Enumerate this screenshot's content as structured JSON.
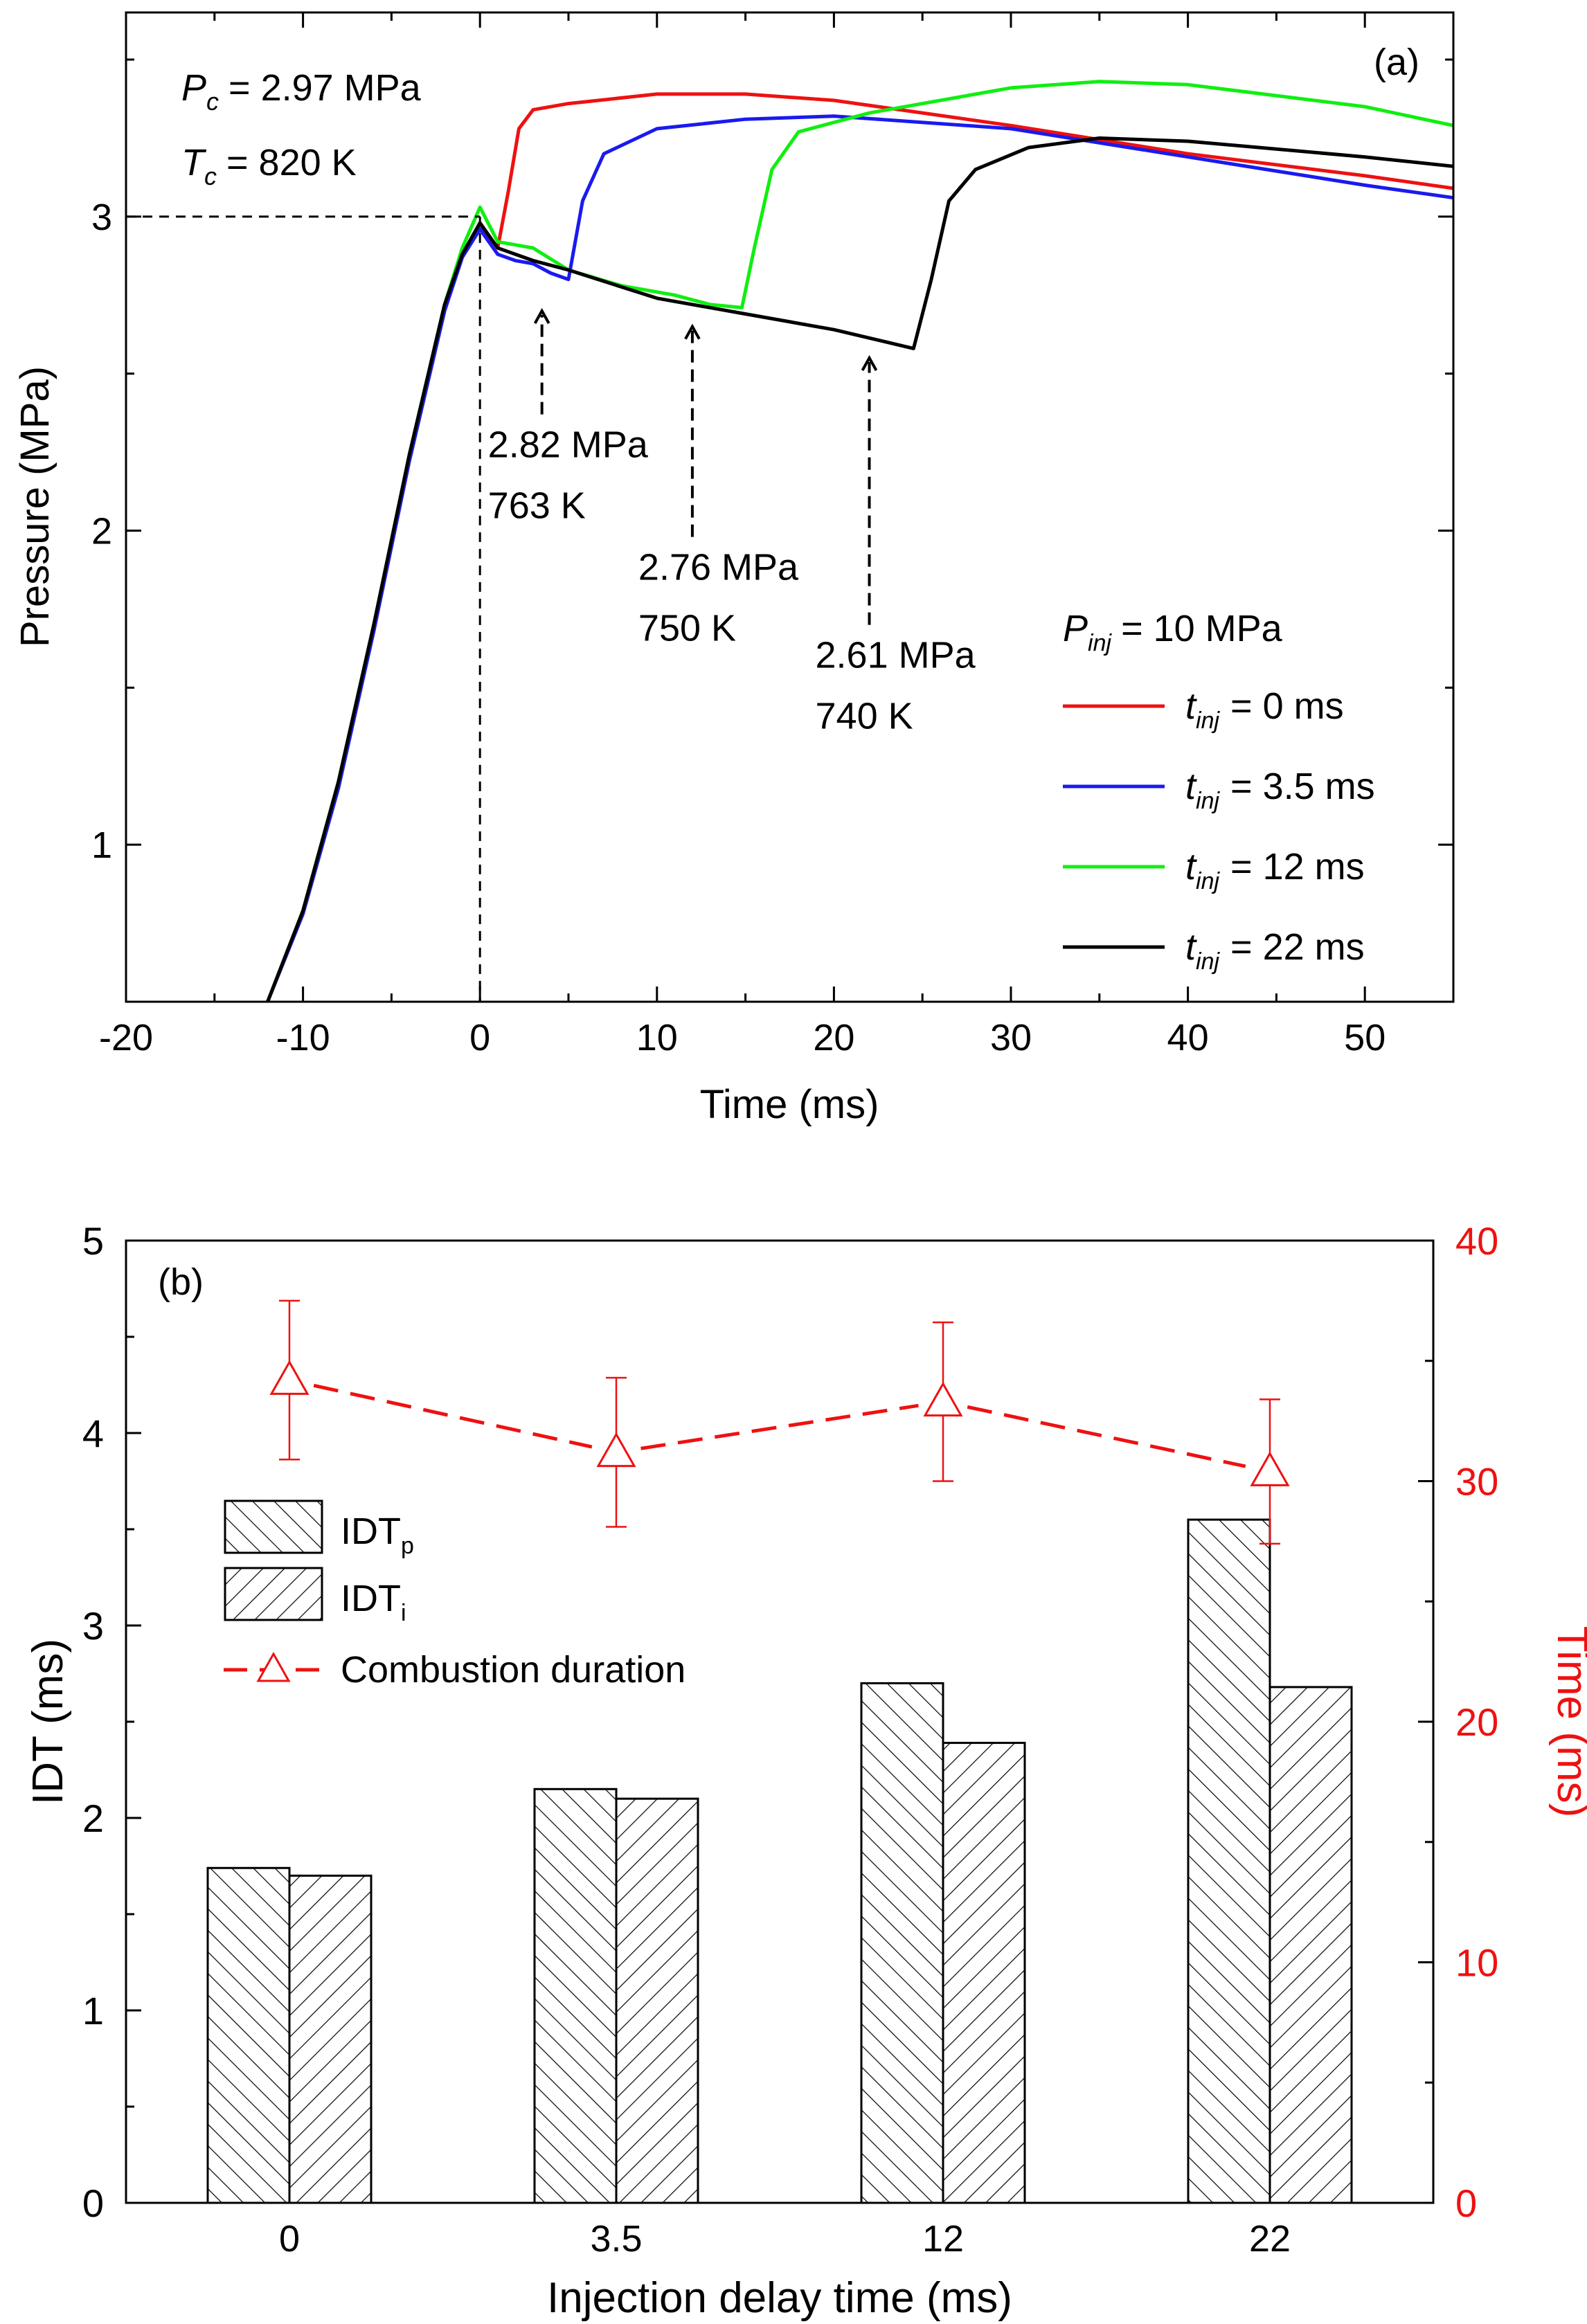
{
  "chart_data": [
    {
      "type": "line",
      "panel_label": "(a)",
      "xlabel": "Time (ms)",
      "ylabel": "Pressure (MPa)",
      "xlim": [
        -20,
        55
      ],
      "ylim": [
        0.5,
        3.65
      ],
      "xticks": [
        -20,
        -10,
        0,
        10,
        20,
        30,
        40,
        50
      ],
      "yticks": [
        1,
        2,
        3
      ],
      "grid": false,
      "conditions": {
        "pc_sym": "P",
        "pc_sub": "c",
        "pc_val": "= 2.97 MPa",
        "tc_sym": "T",
        "tc_sub": "c",
        "tc_val": "= 820 K"
      },
      "reference_line": {
        "x": 0,
        "y": 3
      },
      "legend": {
        "title_sym": "P",
        "title_sub": "inj",
        "title_val": "=  10 MPa",
        "placement": "right"
      },
      "series": [
        {
          "label_sym": "t",
          "label_sub": "inj",
          "label_val": "= 0 ms",
          "color": "#ee1111",
          "points": [
            [
              -12,
              0.5
            ],
            [
              -10,
              0.78
            ],
            [
              -8,
              1.18
            ],
            [
              -6,
              1.68
            ],
            [
              -4,
              2.22
            ],
            [
              -2,
              2.7
            ],
            [
              -1,
              2.87
            ],
            [
              0,
              2.97
            ],
            [
              0.6,
              2.93
            ],
            [
              1,
              2.9
            ],
            [
              1.6,
              3.08
            ],
            [
              2.2,
              3.28
            ],
            [
              3,
              3.34
            ],
            [
              5,
              3.36
            ],
            [
              10,
              3.39
            ],
            [
              15,
              3.39
            ],
            [
              20,
              3.37
            ],
            [
              30,
              3.29
            ],
            [
              40,
              3.2
            ],
            [
              50,
              3.13
            ],
            [
              55,
              3.09
            ]
          ]
        },
        {
          "label_sym": "t",
          "label_sub": "inj",
          "label_val": "= 3.5 ms",
          "color": "#1a1aee",
          "points": [
            [
              -12,
              0.5
            ],
            [
              -10,
              0.78
            ],
            [
              -8,
              1.18
            ],
            [
              -6,
              1.68
            ],
            [
              -4,
              2.22
            ],
            [
              -2,
              2.7
            ],
            [
              -1,
              2.87
            ],
            [
              0,
              2.96
            ],
            [
              1,
              2.88
            ],
            [
              2,
              2.86
            ],
            [
              3,
              2.85
            ],
            [
              4,
              2.82
            ],
            [
              5,
              2.8
            ],
            [
              5.8,
              3.05
            ],
            [
              7,
              3.2
            ],
            [
              10,
              3.28
            ],
            [
              15,
              3.31
            ],
            [
              20,
              3.32
            ],
            [
              30,
              3.28
            ],
            [
              40,
              3.19
            ],
            [
              50,
              3.1
            ],
            [
              55,
              3.06
            ]
          ]
        },
        {
          "label_sym": "t",
          "label_sub": "inj",
          "label_val": "= 12 ms",
          "color": "#11ee11",
          "points": [
            [
              -12,
              0.5
            ],
            [
              -10,
              0.79
            ],
            [
              -8,
              1.2
            ],
            [
              -6,
              1.7
            ],
            [
              -4,
              2.24
            ],
            [
              -2,
              2.72
            ],
            [
              -1,
              2.9
            ],
            [
              0,
              3.03
            ],
            [
              1,
              2.92
            ],
            [
              3,
              2.9
            ],
            [
              5,
              2.83
            ],
            [
              8,
              2.78
            ],
            [
              11,
              2.75
            ],
            [
              13,
              2.72
            ],
            [
              14.8,
              2.71
            ],
            [
              15.5,
              2.9
            ],
            [
              16.5,
              3.15
            ],
            [
              18,
              3.27
            ],
            [
              22,
              3.33
            ],
            [
              30,
              3.41
            ],
            [
              35,
              3.43
            ],
            [
              40,
              3.42
            ],
            [
              50,
              3.35
            ],
            [
              55,
              3.29
            ]
          ]
        },
        {
          "label_sym": "t",
          "label_sub": "inj",
          "label_val": "= 22 ms",
          "color": "#000000",
          "points": [
            [
              -12,
              0.5
            ],
            [
              -10,
              0.79
            ],
            [
              -8,
              1.2
            ],
            [
              -6,
              1.7
            ],
            [
              -4,
              2.24
            ],
            [
              -2,
              2.72
            ],
            [
              -1,
              2.88
            ],
            [
              0,
              2.98
            ],
            [
              1,
              2.9
            ],
            [
              3,
              2.86
            ],
            [
              5,
              2.83
            ],
            [
              10,
              2.74
            ],
            [
              15,
              2.69
            ],
            [
              20,
              2.64
            ],
            [
              23,
              2.6
            ],
            [
              24.5,
              2.58
            ],
            [
              25.5,
              2.8
            ],
            [
              26.5,
              3.05
            ],
            [
              28,
              3.15
            ],
            [
              31,
              3.22
            ],
            [
              35,
              3.25
            ],
            [
              40,
              3.24
            ],
            [
              50,
              3.19
            ],
            [
              55,
              3.16
            ]
          ]
        }
      ],
      "annotations": [
        {
          "line1": "2.82 MPa",
          "line2": "763 K",
          "x": 3.5,
          "arrow_y": [
            2.37,
            2.7
          ]
        },
        {
          "line1": "2.76 MPa",
          "line2": "750 K",
          "x": 12,
          "arrow_y": [
            1.98,
            2.65
          ]
        },
        {
          "line1": "2.61 MPa",
          "line2": "740 K",
          "x": 22,
          "arrow_y": [
            1.7,
            2.55
          ]
        }
      ]
    },
    {
      "type": "bar",
      "panel_label": "(b)",
      "xlabel": "Injection delay time (ms)",
      "ylabel": "IDT (ms)",
      "y2label": "Time (ms)",
      "categories": [
        "0",
        "3.5",
        "12",
        "22"
      ],
      "ylim": [
        0,
        5
      ],
      "yticks": [
        0,
        1,
        2,
        3,
        4,
        5
      ],
      "y2lim": [
        0,
        40
      ],
      "y2ticks": [
        0,
        10,
        20,
        30,
        40
      ],
      "legend": {
        "placement": "center-left"
      },
      "series": [
        {
          "name": "IDT",
          "name_sub": "p",
          "axis": "left",
          "pattern": "hatch-back",
          "values": [
            1.74,
            2.15,
            2.7,
            3.55
          ]
        },
        {
          "name": "IDT",
          "name_sub": "i",
          "axis": "left",
          "pattern": "hatch-fwd",
          "values": [
            1.7,
            2.1,
            2.39,
            2.68
          ]
        },
        {
          "name": "Combustion duration",
          "axis": "right",
          "type": "line",
          "color": "#ee1111",
          "values": [
            34.2,
            31.2,
            33.3,
            30.4
          ],
          "errors": [
            3.3,
            3.1,
            3.3,
            3.0
          ]
        }
      ]
    }
  ]
}
